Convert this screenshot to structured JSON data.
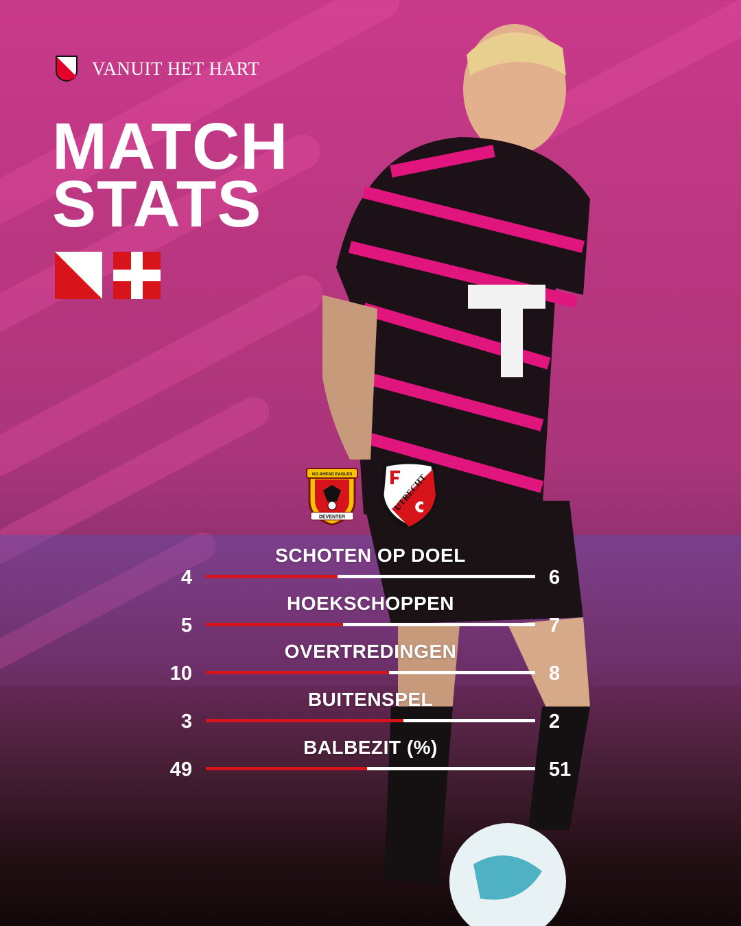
{
  "brand": {
    "slogan": "VANUIT HET HART",
    "logo": "utrecht-shield-icon"
  },
  "title": {
    "line1": "MATCH",
    "line2": "STATS"
  },
  "teams": {
    "home": {
      "name": "Go Ahead Eagles",
      "crest_text_top": "GO AHEAD EAGLES",
      "crest_text_bottom": "DEVENTER"
    },
    "away": {
      "name": "FC Utrecht",
      "crest_text": "UTRECHT"
    }
  },
  "colors": {
    "home_bar": "#d7141a",
    "away_bar": "#ffffff",
    "background": "#c93a8a"
  },
  "stats": [
    {
      "label": "SCHOTEN OP DOEL",
      "home": "4",
      "away": "6",
      "home_share": 0.4
    },
    {
      "label": "HOEKSCHOPPEN",
      "home": "5",
      "away": "7",
      "home_share": 0.4167
    },
    {
      "label": "OVERTREDINGEN",
      "home": "10",
      "away": "8",
      "home_share": 0.5556
    },
    {
      "label": "BUITENSPEL",
      "home": "3",
      "away": "2",
      "home_share": 0.6
    },
    {
      "label": "BALBEZIT (%)",
      "home": "49",
      "away": "51",
      "home_share": 0.49
    }
  ]
}
